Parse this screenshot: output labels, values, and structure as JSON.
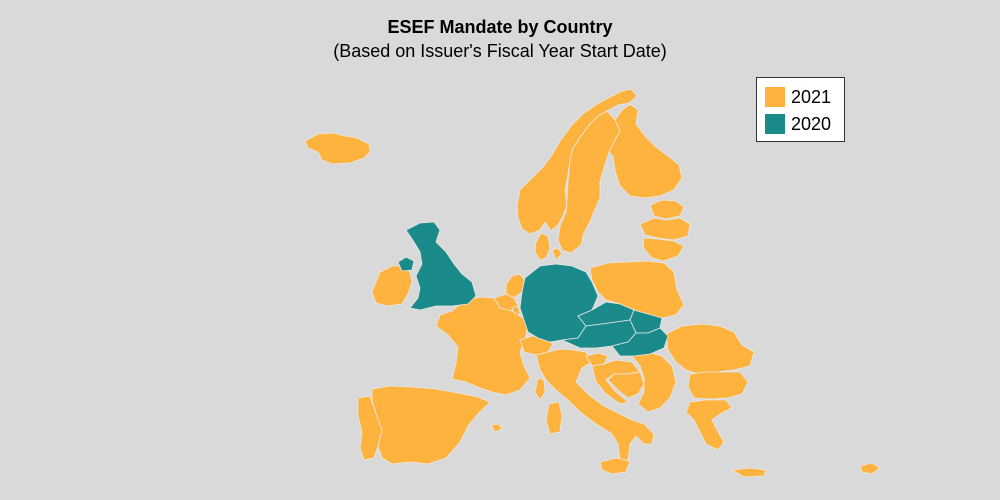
{
  "title": "ESEF Mandate by Country",
  "subtitle": "(Based on Issuer's Fiscal Year Start Date)",
  "colors": {
    "2021": "#ffb33f",
    "2020": "#1a8a8a",
    "background": "#d9d9d9",
    "border": "#e8e8e8"
  },
  "legend": {
    "items": [
      {
        "label": "2021",
        "color": "#ffb33f"
      },
      {
        "label": "2020",
        "color": "#1a8a8a"
      }
    ]
  },
  "map_data": {
    "type": "choropleth",
    "categories": [
      "2021",
      "2020"
    ],
    "countries_2020": [
      "United Kingdom",
      "Northern Ireland",
      "Germany",
      "Czech Republic",
      "Austria",
      "Slovakia",
      "Hungary"
    ],
    "countries_2021": [
      "Iceland",
      "Ireland",
      "Norway",
      "Sweden",
      "Finland",
      "Denmark",
      "Estonia",
      "Latvia",
      "Lithuania",
      "Poland",
      "Netherlands",
      "Belgium",
      "Luxembourg",
      "France",
      "Spain",
      "Portugal",
      "Italy",
      "Switzerland",
      "Slovenia",
      "Croatia",
      "Bosnia and Herzegovina",
      "Serbia",
      "Romania",
      "Bulgaria",
      "Greece",
      "Cyprus",
      "Malta"
    ]
  }
}
